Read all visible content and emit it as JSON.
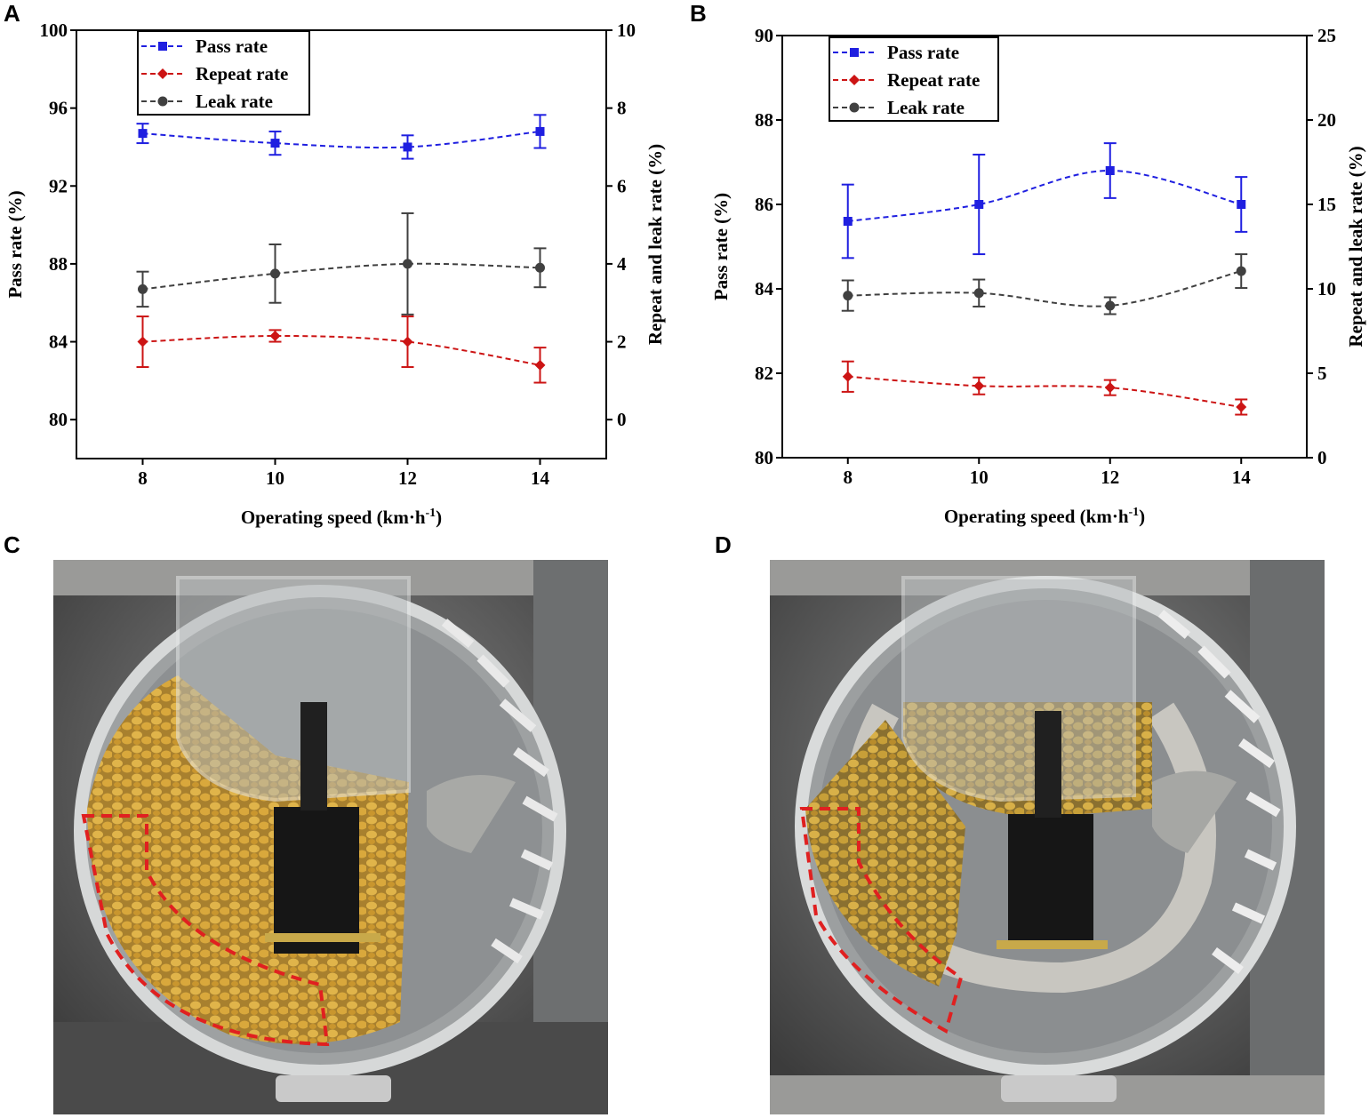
{
  "panels": {
    "a": "A",
    "b": "B",
    "c": "C",
    "d": "D"
  },
  "colors": {
    "pass": "#1f1fe0",
    "repeat": "#cc1414",
    "leak": "#404040"
  },
  "chart_data": [
    {
      "panel": "A",
      "type": "line",
      "xlabel": "Operating speed (km·h",
      "xlabel_sup": "-1",
      "xlabel_end": ")",
      "ylabel_left": "Pass rate (%)",
      "ylabel_right": "Repeat and leak rate (%)",
      "x_ticks": [
        8,
        10,
        12,
        14
      ],
      "xlim": [
        7,
        15
      ],
      "ylim_left": [
        78,
        100
      ],
      "ylim_right": [
        -1,
        10
      ],
      "y_ticks_left": [
        80,
        84,
        88,
        92,
        96,
        100
      ],
      "y_ticks_right": [
        0,
        2,
        4,
        6,
        8,
        10
      ],
      "legend": [
        "Pass rate",
        "Repeat rate",
        "Leak rate"
      ],
      "legend_position": "top-left",
      "series": [
        {
          "name": "Pass rate",
          "axis": "left",
          "marker": "square",
          "color": "#1f1fe0",
          "x": [
            8,
            10,
            12,
            14
          ],
          "values": [
            94.7,
            94.2,
            94.0,
            94.8
          ],
          "err": [
            0.5,
            0.6,
            0.6,
            0.85
          ]
        },
        {
          "name": "Repeat rate",
          "axis": "right",
          "marker": "diamond",
          "color": "#cc1414",
          "x": [
            8,
            10,
            12,
            14
          ],
          "values": [
            2.0,
            2.15,
            2.0,
            1.4
          ],
          "err": [
            0.65,
            0.15,
            0.65,
            0.45
          ]
        },
        {
          "name": "Leak rate",
          "axis": "right",
          "marker": "circle",
          "color": "#404040",
          "x": [
            8,
            10,
            12,
            14
          ],
          "values": [
            3.35,
            3.75,
            4.0,
            3.9
          ],
          "err": [
            0.45,
            0.75,
            1.3,
            0.5
          ]
        }
      ]
    },
    {
      "panel": "B",
      "type": "line",
      "xlabel": "Operating speed (km·h",
      "xlabel_sup": "-1",
      "xlabel_end": ")",
      "ylabel_left": "Pass rate (%)",
      "ylabel_right": "Repeat and leak rate (%)",
      "x_ticks": [
        8,
        10,
        12,
        14
      ],
      "xlim": [
        7,
        15
      ],
      "ylim_left": [
        80,
        90
      ],
      "ylim_right": [
        0,
        25
      ],
      "y_ticks_left": [
        80,
        82,
        84,
        86,
        88,
        90
      ],
      "y_ticks_right": [
        0,
        5,
        10,
        15,
        20,
        25
      ],
      "legend": [
        "Pass rate",
        "Repeat rate",
        "Leak rate"
      ],
      "legend_position": "top-left",
      "series": [
        {
          "name": "Pass rate",
          "axis": "left",
          "marker": "square",
          "color": "#1f1fe0",
          "x": [
            8,
            10,
            12,
            14
          ],
          "values": [
            85.6,
            86.0,
            86.8,
            86.0
          ],
          "err": [
            0.87,
            1.18,
            0.65,
            0.65
          ]
        },
        {
          "name": "Repeat rate",
          "axis": "right",
          "marker": "diamond",
          "color": "#cc1414",
          "x": [
            8,
            10,
            12,
            14
          ],
          "values": [
            4.8,
            4.25,
            4.15,
            3.0
          ],
          "err": [
            0.9,
            0.5,
            0.45,
            0.45
          ]
        },
        {
          "name": "Leak rate",
          "axis": "right",
          "marker": "circle",
          "color": "#404040",
          "x": [
            8,
            10,
            12,
            14
          ],
          "values": [
            9.6,
            9.75,
            9.0,
            11.05
          ],
          "err": [
            0.9,
            0.8,
            0.5,
            1.0
          ]
        }
      ]
    }
  ]
}
